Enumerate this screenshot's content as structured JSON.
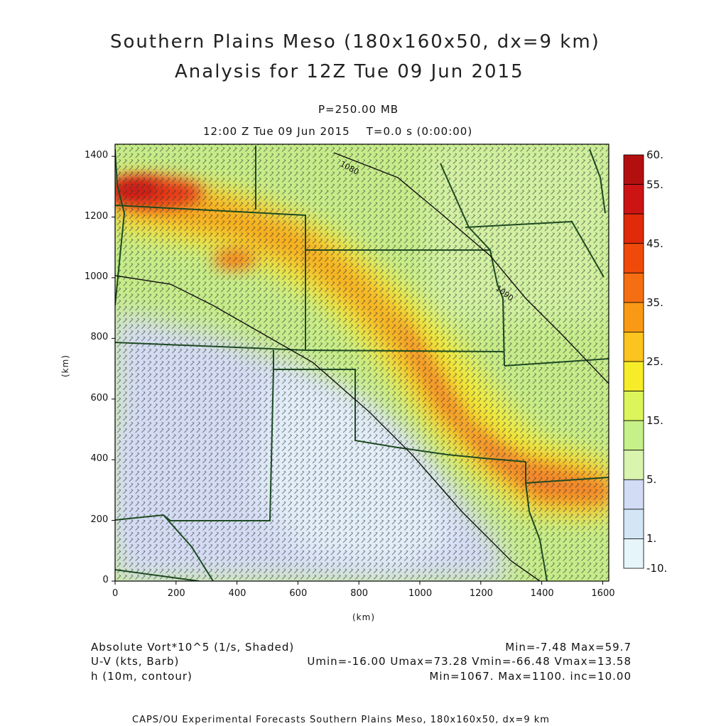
{
  "title": {
    "line1": "Southern Plains Meso (180x160x50, dx=9 km)",
    "line2": "Analysis for 12Z Tue 09 Jun 2015"
  },
  "subtitle": {
    "level": "P=250.00 MB",
    "time": "12:00 Z Tue 09 Jun 2015    T=0.0 s (0:00:00)"
  },
  "axes": {
    "x_unit": "(km)",
    "y_unit": "(km)",
    "x_ticks": [
      "0",
      "200",
      "400",
      "600",
      "800",
      "1000",
      "1200",
      "1400",
      "1600"
    ],
    "y_ticks": [
      "0",
      "200",
      "400",
      "600",
      "800",
      "1000",
      "1200",
      "1400"
    ],
    "xlim": [
      0,
      1620
    ],
    "ylim": [
      0,
      1440
    ]
  },
  "colorbar": {
    "labels": [
      "60.",
      "55.",
      "45.",
      "35.",
      "25.",
      "15.",
      "5.",
      "1.",
      "-10."
    ],
    "colors": [
      "#b40f0f",
      "#cc1414",
      "#e02a0a",
      "#f04a0a",
      "#f56e12",
      "#fa9a14",
      "#fbc41e",
      "#f7ec28",
      "#dcf55a",
      "#c6f088",
      "#d8f4ae",
      "#d2dcf5",
      "#d2e6f5",
      "#e6f5fa"
    ]
  },
  "contour_labels": [
    "1080",
    "1090"
  ],
  "stats": {
    "vort_label": "Absolute Vort*10^5 (1/s, Shaded)",
    "vort_stats": "Min=-7.48 Max=59.7",
    "wind_label": "U-V (kts, Barb)",
    "wind_stats": "Umin=-16.00 Umax=73.28 Vmin=-66.48 Vmax=13.58",
    "h_label": "h (10m, contour)",
    "h_stats": "Min=1067. Max=1100. inc=10.00"
  },
  "footer": "CAPS/OU Experimental Forecasts  Southern Plains Meso, 180x160x50, dx=9 km"
}
